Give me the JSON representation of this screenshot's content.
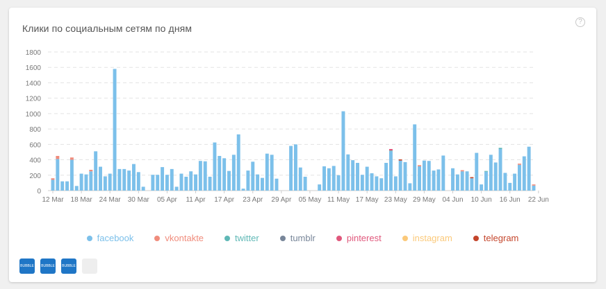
{
  "title": "Клики по социальным сетям по дням",
  "help_glyph": "?",
  "thumbnails": [
    {
      "label": "BUBBLE"
    },
    {
      "label": "BUBBLE"
    },
    {
      "label": "BUBBLE"
    },
    {
      "label": ""
    }
  ],
  "chart_data": {
    "type": "bar",
    "stacked": true,
    "title": "Клики по социальным сетям по дням",
    "ylim": [
      0,
      1800
    ],
    "yticks": [
      0,
      200,
      400,
      600,
      800,
      1000,
      1200,
      1400,
      1600,
      1800
    ],
    "grid": true,
    "legend_position": "bottom",
    "x_tick_labels": [
      "12 Mar",
      "18 Mar",
      "24 Mar",
      "30 Mar",
      "05 Apr",
      "11 Apr",
      "17 Apr",
      "23 Apr",
      "29 Apr",
      "05 May",
      "11 May",
      "17 May",
      "23 May",
      "29 May",
      "04 Jun",
      "10 Jun",
      "16 Jun",
      "22 Jun"
    ],
    "x_tick_every": 6,
    "colors": {
      "facebook": "#7cc0ea",
      "vkontakte": "#f08c7c",
      "twitter": "#5fb8b6",
      "tumblr": "#788699",
      "pinterest": "#e0587c",
      "instagram": "#fbc97a",
      "telegram": "#c4452b"
    },
    "series": [
      {
        "name": "facebook",
        "values": [
          140,
          410,
          120,
          120,
          400,
          60,
          220,
          210,
          250,
          510,
          310,
          185,
          220,
          1580,
          280,
          280,
          260,
          345,
          240,
          50,
          0,
          205,
          205,
          305,
          205,
          280,
          50,
          220,
          180,
          250,
          210,
          385,
          380,
          180,
          625,
          450,
          420,
          255,
          465,
          730,
          25,
          260,
          375,
          210,
          165,
          480,
          465,
          155,
          0,
          0,
          580,
          600,
          300,
          180,
          0,
          0,
          80,
          315,
          290,
          320,
          200,
          1030,
          470,
          395,
          360,
          205,
          310,
          225,
          185,
          160,
          360,
          510,
          185,
          390,
          370,
          95,
          860,
          315,
          390,
          385,
          260,
          275,
          455,
          0,
          290,
          210,
          250,
          250,
          160,
          490,
          80,
          245,
          465,
          365,
          540,
          230,
          100,
          220,
          335,
          445,
          570,
          65
        ]
      },
      {
        "name": "vkontakte",
        "values": [
          20,
          40,
          0,
          0,
          30,
          0,
          0,
          0,
          20,
          0,
          0,
          0,
          0,
          0,
          0,
          0,
          0,
          0,
          0,
          0,
          0,
          0,
          0,
          0,
          0,
          0,
          0,
          0,
          0,
          0,
          0,
          0,
          0,
          0,
          0,
          0,
          0,
          0,
          0,
          0,
          0,
          0,
          0,
          0,
          0,
          0,
          0,
          0,
          0,
          0,
          0,
          0,
          0,
          0,
          0,
          0,
          0,
          0,
          0,
          0,
          0,
          0,
          0,
          0,
          0,
          0,
          0,
          0,
          0,
          0,
          0,
          0,
          0,
          0,
          0,
          0,
          0,
          15,
          0,
          0,
          0,
          0,
          0,
          0,
          0,
          0,
          15,
          0,
          0,
          0,
          0,
          0,
          0,
          0,
          0,
          0,
          0,
          0,
          15,
          0,
          0,
          15
        ]
      },
      {
        "name": "twitter",
        "values": [
          0,
          0,
          0,
          0,
          0,
          0,
          0,
          0,
          0,
          0,
          0,
          0,
          0,
          0,
          0,
          0,
          0,
          0,
          0,
          0,
          0,
          0,
          0,
          0,
          0,
          0,
          0,
          0,
          0,
          0,
          0,
          0,
          0,
          0,
          0,
          0,
          0,
          0,
          0,
          0,
          0,
          0,
          0,
          0,
          0,
          0,
          0,
          0,
          0,
          0,
          0,
          0,
          0,
          0,
          0,
          0,
          0,
          0,
          0,
          0,
          0,
          0,
          0,
          0,
          0,
          0,
          0,
          0,
          0,
          0,
          0,
          10,
          0,
          0,
          0,
          0,
          0,
          0,
          0,
          0,
          0,
          0,
          0,
          0,
          0,
          0,
          0,
          0,
          0,
          0,
          0,
          10,
          0,
          0,
          15,
          0,
          0,
          0,
          0,
          0,
          0,
          0
        ]
      },
      {
        "name": "tumblr",
        "values": []
      },
      {
        "name": "pinterest",
        "values": [
          0,
          0,
          0,
          0,
          0,
          0,
          0,
          0,
          0,
          0,
          0,
          0,
          0,
          0,
          0,
          0,
          0,
          0,
          0,
          0,
          0,
          0,
          0,
          0,
          0,
          0,
          0,
          0,
          0,
          0,
          0,
          0,
          0,
          0,
          0,
          0,
          0,
          0,
          0,
          0,
          0,
          0,
          0,
          0,
          0,
          0,
          0,
          0,
          0,
          0,
          0,
          0,
          0,
          0,
          0,
          0,
          0,
          0,
          0,
          0,
          0,
          0,
          0,
          0,
          0,
          0,
          0,
          0,
          0,
          0,
          0,
          20,
          0,
          0,
          0,
          0,
          0,
          0,
          0,
          0,
          0,
          0,
          0,
          0,
          0,
          0,
          0,
          0,
          0,
          0,
          0,
          0,
          0,
          0,
          0,
          0,
          0,
          0,
          0,
          0,
          0,
          0
        ]
      },
      {
        "name": "instagram",
        "values": []
      },
      {
        "name": "telegram",
        "values": [
          0,
          0,
          0,
          0,
          0,
          0,
          0,
          0,
          0,
          0,
          0,
          0,
          0,
          0,
          0,
          0,
          0,
          0,
          0,
          0,
          0,
          0,
          0,
          0,
          0,
          0,
          0,
          0,
          0,
          0,
          0,
          0,
          0,
          0,
          0,
          0,
          0,
          0,
          0,
          0,
          0,
          0,
          0,
          0,
          0,
          0,
          0,
          0,
          0,
          0,
          0,
          0,
          0,
          0,
          0,
          0,
          0,
          0,
          0,
          0,
          0,
          0,
          0,
          0,
          0,
          0,
          0,
          0,
          0,
          0,
          0,
          0,
          0,
          15,
          0,
          0,
          0,
          0,
          0,
          0,
          0,
          0,
          0,
          0,
          0,
          0,
          0,
          0,
          15,
          0,
          0,
          0,
          0,
          0,
          0,
          0,
          0,
          0,
          0,
          0,
          0,
          0
        ]
      }
    ]
  }
}
